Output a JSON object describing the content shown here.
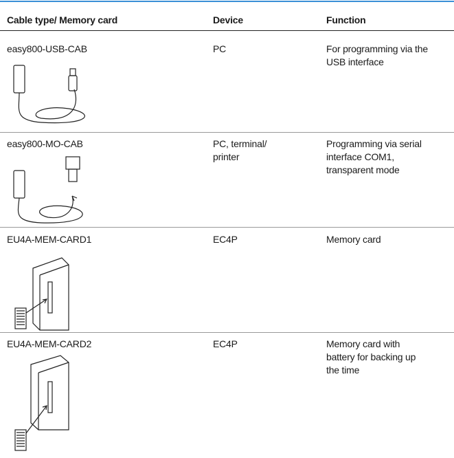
{
  "table": {
    "header": [
      "Cable type/ Memory card",
      "Device",
      "Function"
    ],
    "rows": [
      {
        "name": "easy800-USB-CAB",
        "device": [
          "PC"
        ],
        "function": [
          "For programming via the",
          "USB interface"
        ]
      },
      {
        "name": "easy800-MO-CAB",
        "device": [
          "PC, terminal/",
          "printer"
        ],
        "function": [
          "Programming via serial",
          "interface COM1,",
          "transparent mode"
        ]
      },
      {
        "name": "EU4A-MEM-CARD1",
        "device": [
          "EC4P"
        ],
        "function": [
          "Memory card"
        ]
      },
      {
        "name": "EU4A-MEM-CARD2",
        "device": [
          "EC4P"
        ],
        "function": [
          "Memory card with",
          "battery for backing up",
          "the time"
        ]
      }
    ]
  }
}
